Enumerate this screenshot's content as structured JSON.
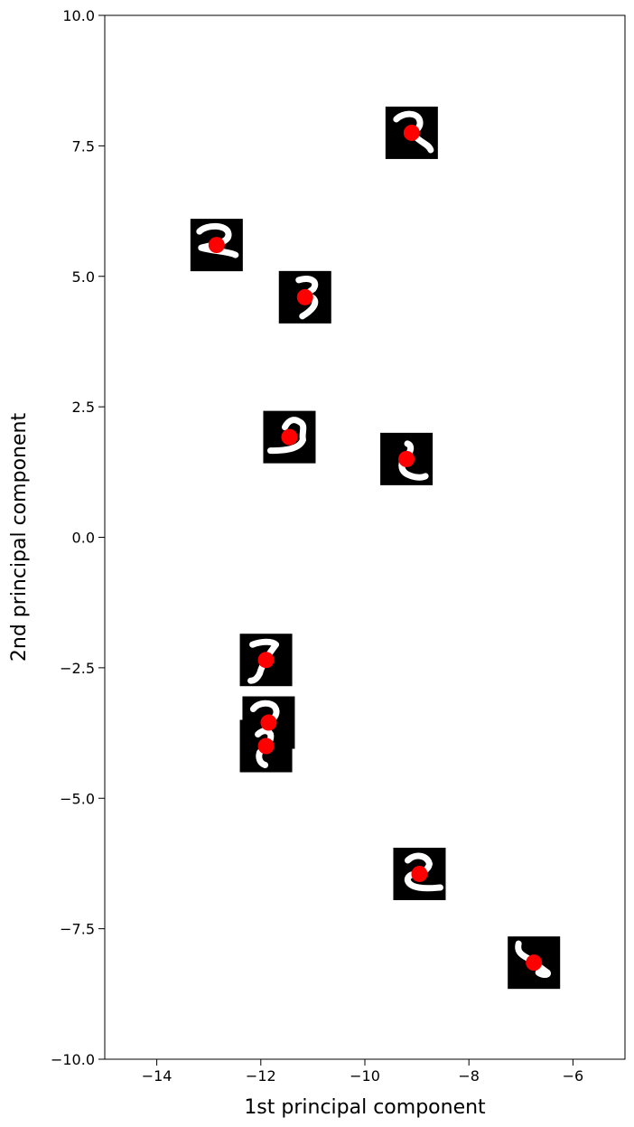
{
  "chart_data": {
    "type": "scatter",
    "title": "",
    "xlabel": "1st principal component",
    "ylabel": "2nd principal component",
    "xlim": [
      -15,
      -5
    ],
    "ylim": [
      -10,
      10
    ],
    "xticks": [
      -14,
      -12,
      -10,
      -8,
      -6
    ],
    "xtick_labels": [
      "−14",
      "−12",
      "−10",
      "−8",
      "−6"
    ],
    "yticks": [
      -10,
      -7.5,
      -5,
      -2.5,
      0,
      2.5,
      5,
      7.5,
      10
    ],
    "ytick_labels": [
      "−10.0",
      "−7.5",
      "−5.0",
      "−2.5",
      "0.0",
      "2.5",
      "5.0",
      "7.5",
      "10.0"
    ],
    "grid": false,
    "marker_color": "#ff0000",
    "points": [
      {
        "x": -9.1,
        "y": 7.75,
        "thumbnail": "digit-2-curly"
      },
      {
        "x": -12.85,
        "y": 5.6,
        "thumbnail": "digit-2-flat"
      },
      {
        "x": -11.15,
        "y": 4.6,
        "thumbnail": "digit-3"
      },
      {
        "x": -11.45,
        "y": 1.92,
        "thumbnail": "digit-3-curl"
      },
      {
        "x": -9.2,
        "y": 1.5,
        "thumbnail": "digit-2-small"
      },
      {
        "x": -11.9,
        "y": -2.35,
        "thumbnail": "digit-7"
      },
      {
        "x": -11.85,
        "y": -3.55,
        "thumbnail": "digit-2-open"
      },
      {
        "x": -11.9,
        "y": -4.0,
        "thumbnail": "digit-2-hook"
      },
      {
        "x": -8.95,
        "y": -6.45,
        "thumbnail": "digit-2-round"
      },
      {
        "x": -6.75,
        "y": -8.15,
        "thumbnail": "digit-2-diagonal"
      }
    ]
  }
}
